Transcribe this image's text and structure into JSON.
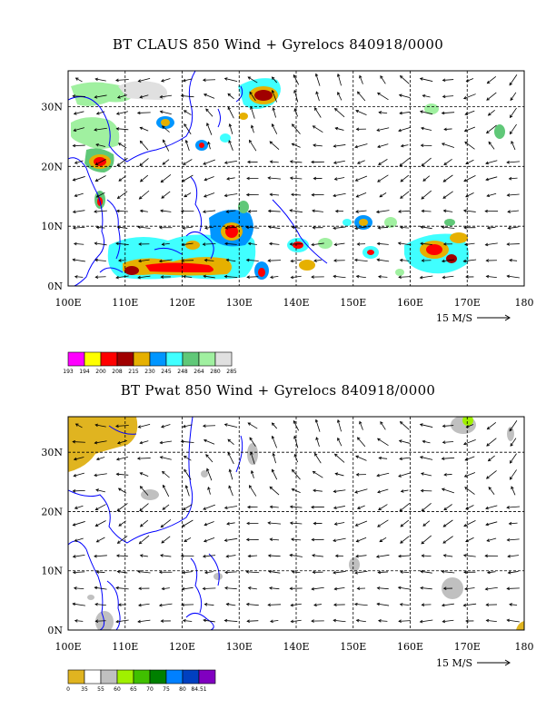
{
  "panels": [
    {
      "title": "BT CLAUS 850 Wind + Gyrelocs 840918/0000",
      "xticks": [
        "100E",
        "110E",
        "120E",
        "130E",
        "140E",
        "150E",
        "160E",
        "170E",
        "180"
      ],
      "yticks": [
        "0N",
        "10N",
        "20N",
        "30N"
      ],
      "scale_label": "15 M/S",
      "colorbar": {
        "colors": [
          "#ff00ff",
          "#ffff00",
          "#ff0000",
          "#a00000",
          "#e6b000",
          "#0096ff",
          "#40ffff",
          "#60c878",
          "#a0f0a0",
          "#e0e0e0"
        ],
        "labels": [
          "193",
          "194",
          "200",
          "208",
          "215",
          "230",
          "245",
          "248",
          "264",
          "280",
          "285"
        ]
      }
    },
    {
      "title": "BT Pwat 850 Wind + Gyrelocs 840918/0000",
      "xticks": [
        "100E",
        "110E",
        "120E",
        "130E",
        "140E",
        "150E",
        "160E",
        "170E",
        "180"
      ],
      "yticks": [
        "0N",
        "10N",
        "20N",
        "30N"
      ],
      "scale_label": "15 M/S",
      "colorbar": {
        "colors": [
          "#e0b420",
          "#ffffff",
          "#c0c0c0",
          "#a0f000",
          "#40c000",
          "#008000",
          "#0080ff",
          "#0040c0",
          "#8000c0"
        ],
        "labels": [
          "0",
          "35",
          "55",
          "60",
          "65",
          "70",
          "75",
          "80",
          "84.51"
        ]
      }
    }
  ],
  "map": {
    "lon_range": [
      100,
      180
    ],
    "lat_range": [
      0,
      36
    ],
    "land_outline_color": "#0000ff",
    "grid": "dashed"
  }
}
